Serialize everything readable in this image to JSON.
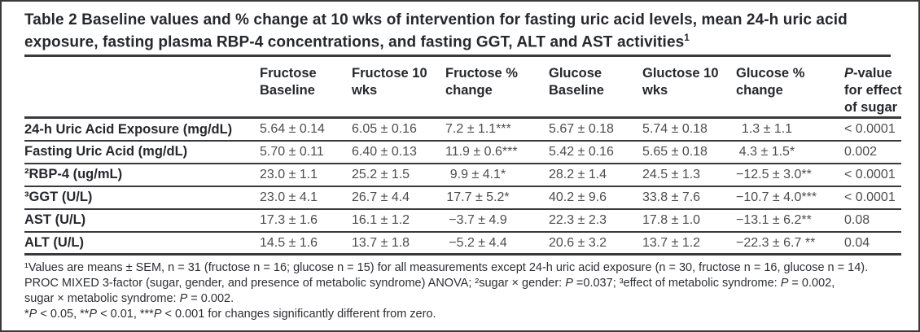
{
  "figure": {
    "title_segments": [
      {
        "t": "Table 2 Baseline values and % change at 10 wks of intervention for fasting uric acid levels, mean 24-h uric acid exposure, fasting plasma RBP-4 concentrations, and fasting GGT, ALT and AST activities"
      },
      {
        "t": "1",
        "sup": true
      }
    ]
  },
  "colors": {
    "text": "#26282c",
    "data_text": "#4d4d4d",
    "rule": "#3a3a3c",
    "border": "#3b3b3d",
    "background": "#ffffff"
  },
  "table": {
    "headers": [
      {
        "text": ""
      },
      {
        "text": "Fructose Baseline"
      },
      {
        "text": "Fructose 10 wks"
      },
      {
        "text": "Fructose % change"
      },
      {
        "text": "Glucose Baseline"
      },
      {
        "text": "Gluctose 10 wks"
      },
      {
        "text": "Glucose % change"
      },
      {
        "segments": [
          {
            "t": "P",
            "i": true
          },
          {
            "t": "-value for effect of sugar"
          }
        ]
      }
    ],
    "rows": [
      {
        "label": "24-h Uric Acid Exposure (mg/dL)",
        "values": [
          "5.64 ± 0.14",
          "6.05 ± 0.16",
          "7.2 ± 1.1***",
          "5.67 ± 0.18",
          "5.74 ± 0.18",
          "1.3 ± 1.1",
          "< 0.0001"
        ]
      },
      {
        "label": "Fasting Uric Acid (mg/dL)",
        "values": [
          "5.70 ± 0.11",
          "6.40 ± 0.13",
          "11.9 ± 0.6***",
          "5.42 ± 0.16",
          "5.65 ± 0.18",
          "4.3 ± 1.5*",
          "0.002"
        ]
      },
      {
        "label": "²RBP-4 (ug/mL)",
        "values": [
          "23.0 ± 1.1",
          "25.2 ± 1.5",
          "9.9 ± 4.1*",
          "28.2 ± 1.4",
          "24.5 ± 1.3",
          "−12.5 ± 3.0**",
          "< 0.0001"
        ]
      },
      {
        "label": "³GGT (U/L)",
        "values": [
          "23.0 ± 4.1",
          "26.7 ± 4.4",
          "17.7 ± 5.2*",
          "40.2 ± 9.6",
          "33.8 ± 7.6",
          "−10.7 ± 4.0***",
          "< 0.0001"
        ]
      },
      {
        "label": "AST (U/L)",
        "values": [
          "17.3 ± 1.6",
          "16.1 ± 1.2",
          "−3.7 ± 4.9",
          "22.3 ± 2.3",
          "17.8 ± 1.0",
          "−13.1 ± 6.2**",
          "0.08"
        ]
      },
      {
        "label": "ALT (U/L)",
        "values": [
          "14.5 ± 1.6",
          "13.7 ± 1.8",
          "−5.2 ± 4.4",
          "20.6 ± 3.2",
          "13.7 ± 1.2",
          "−22.3 ± 6.7 **",
          "0.04"
        ]
      }
    ]
  },
  "footnotes": {
    "lines": [
      {
        "segments": [
          {
            "t": "¹Values are means ± SEM, n = 31 (fructose n = 16; glucose n = 15) for all measurements except 24-h uric acid exposure (n = 30, fructose n = 16, glucose n = 14)."
          }
        ]
      },
      {
        "segments": [
          {
            "t": "PROC MIXED 3-factor (sugar, gender, and presence of metabolic syndrome) ANOVA; ²sugar × gender: "
          },
          {
            "t": "P",
            "i": true
          },
          {
            "t": " =0.037; ³effect of metabolic syndrome: "
          },
          {
            "t": "P",
            "i": true
          },
          {
            "t": " = 0.002,"
          }
        ]
      },
      {
        "segments": [
          {
            "t": "sugar × metabolic syndrome: "
          },
          {
            "t": "P",
            "i": true
          },
          {
            "t": " = 0.002."
          }
        ]
      },
      {
        "segments": [
          {
            "t": "*"
          },
          {
            "t": "P",
            "i": true
          },
          {
            "t": " < 0.05, **"
          },
          {
            "t": "P",
            "i": true
          },
          {
            "t": " < 0.01, ***"
          },
          {
            "t": "P",
            "i": true
          },
          {
            "t": " < 0.001 for changes significantly different from zero."
          }
        ]
      }
    ]
  }
}
